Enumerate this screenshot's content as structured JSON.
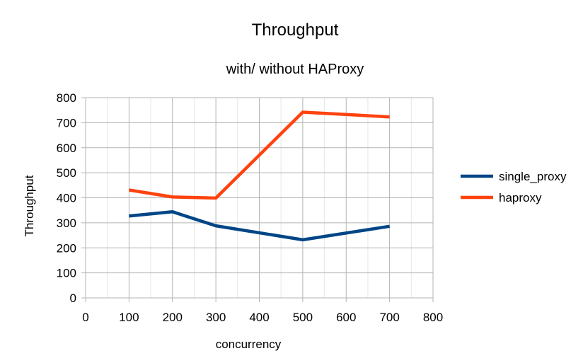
{
  "chart_data": {
    "type": "line",
    "title": "Throughput",
    "subtitle": "with/ without HAProxy",
    "xlabel": "concurrency",
    "ylabel": "Throughput",
    "xlim": [
      0,
      800
    ],
    "ylim": [
      0,
      800
    ],
    "x_ticks": [
      0,
      100,
      200,
      300,
      400,
      500,
      600,
      700,
      800
    ],
    "y_ticks": [
      0,
      100,
      200,
      300,
      400,
      500,
      600,
      700,
      800
    ],
    "grid": true,
    "legend_position": "right",
    "series": [
      {
        "name": "single_proxy",
        "color": "#004586",
        "points": [
          [
            100,
            327
          ],
          [
            200,
            344
          ],
          [
            300,
            288
          ],
          [
            500,
            232
          ],
          [
            700,
            286
          ]
        ]
      },
      {
        "name": "haproxy",
        "color": "#ff420e",
        "points": [
          [
            100,
            431
          ],
          [
            200,
            403
          ],
          [
            300,
            399
          ],
          [
            500,
            742
          ],
          [
            700,
            723
          ]
        ]
      }
    ]
  }
}
